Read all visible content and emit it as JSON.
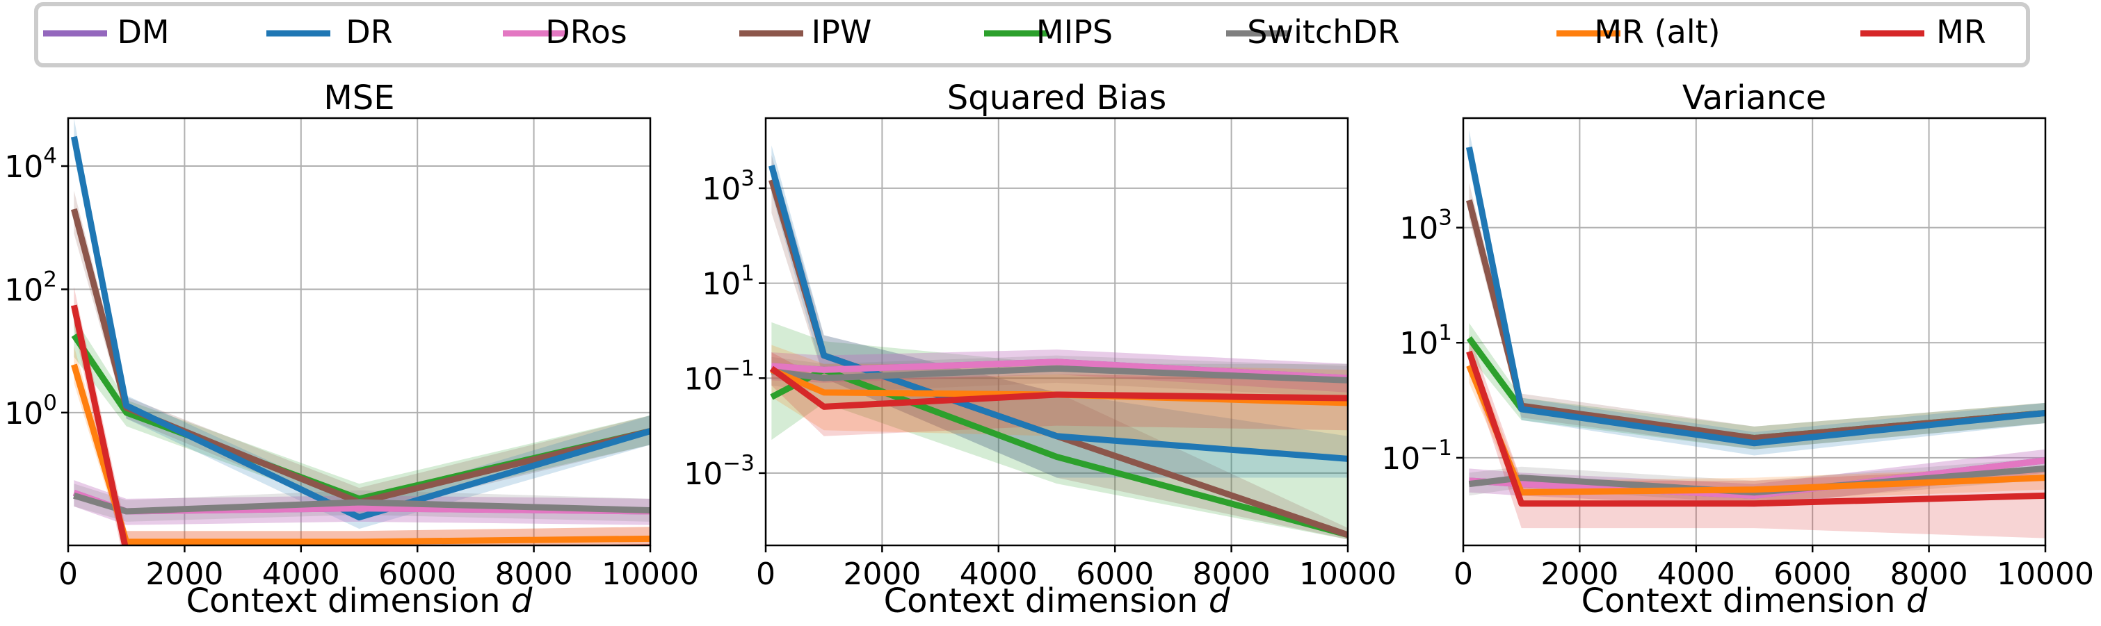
{
  "legend": {
    "placement": "top",
    "entries": [
      {
        "label": "DM",
        "color": "#9467bd"
      },
      {
        "label": "DR",
        "color": "#1f77b4"
      },
      {
        "label": "DRos",
        "color": "#e377c2"
      },
      {
        "label": "IPW",
        "color": "#8c564b"
      },
      {
        "label": "MIPS",
        "color": "#2ca02c"
      },
      {
        "label": "SwitchDR",
        "color": "#7f7f7f"
      },
      {
        "label": "MR (alt)",
        "color": "#ff7f0e"
      },
      {
        "label": "MR",
        "color": "#d62728"
      }
    ]
  },
  "chart_data": [
    {
      "type": "line",
      "title": "MSE",
      "xlabel": "Context dimension d",
      "ylabel": "",
      "x": [
        100,
        1000,
        5000,
        10000
      ],
      "xlim": [
        0,
        10000
      ],
      "xticks": [
        "0",
        "2000",
        "4000",
        "6000",
        "8000",
        "10000"
      ],
      "yscale": "log",
      "ylim": [
        0.007,
        60000
      ],
      "yticks": [
        {
          "value": 1,
          "base": "10",
          "exp": "0"
        },
        {
          "value": 100,
          "base": "10",
          "exp": "2"
        },
        {
          "value": 10000,
          "base": "10",
          "exp": "4"
        }
      ],
      "grid": true,
      "series": [
        {
          "name": "DM",
          "color": "#9467bd",
          "values": [
            0.05,
            0.025,
            0.028,
            0.025
          ],
          "band": [
            [
              0.03,
              0.08
            ],
            [
              0.015,
              0.04
            ],
            [
              0.017,
              0.045
            ],
            [
              0.015,
              0.04
            ]
          ]
        },
        {
          "name": "DRos",
          "color": "#e377c2",
          "values": [
            0.05,
            0.025,
            0.028,
            0.025
          ],
          "band": [
            [
              0.03,
              0.08
            ],
            [
              0.015,
              0.04
            ],
            [
              0.017,
              0.045
            ],
            [
              0.015,
              0.04
            ]
          ]
        },
        {
          "name": "IPW",
          "color": "#8c564b",
          "values": [
            2000,
            1.2,
            0.035,
            0.5
          ],
          "band": [
            [
              800,
              4000
            ],
            [
              0.8,
              1.8
            ],
            [
              0.022,
              0.06
            ],
            [
              0.3,
              0.9
            ]
          ]
        },
        {
          "name": "DR",
          "color": "#1f77b4",
          "values": [
            30000,
            1.3,
            0.02,
            0.5
          ],
          "band": [
            [
              15000,
              60000
            ],
            [
              0.8,
              1.9
            ],
            [
              0.013,
              0.035
            ],
            [
              0.3,
              0.9
            ]
          ]
        },
        {
          "name": "MIPS",
          "color": "#2ca02c",
          "values": [
            18,
            1.0,
            0.04,
            0.5
          ],
          "band": [
            [
              8,
              35
            ],
            [
              0.6,
              1.6
            ],
            [
              0.025,
              0.07
            ],
            [
              0.3,
              0.9
            ]
          ]
        },
        {
          "name": "SwitchDR",
          "color": "#7f7f7f",
          "values": [
            0.045,
            0.025,
            0.035,
            0.026
          ],
          "band": [
            [
              0.03,
              0.07
            ],
            [
              0.017,
              0.038
            ],
            [
              0.022,
              0.055
            ],
            [
              0.017,
              0.04
            ]
          ]
        },
        {
          "name": "MR (alt)",
          "color": "#ff7f0e",
          "values": [
            6,
            0.008,
            0.008,
            0.009
          ],
          "band": [
            [
              3,
              12
            ],
            [
              0.005,
              0.012
            ],
            [
              0.005,
              0.012
            ],
            [
              0.006,
              0.014
            ]
          ]
        },
        {
          "name": "MR",
          "color": "#d62728",
          "values": [
            55,
            0.0055,
            0.0058,
            0.0065
          ],
          "band": [
            [
              25,
              110
            ],
            [
              0.0025,
              0.012
            ],
            [
              0.0025,
              0.012
            ],
            [
              0.003,
              0.014
            ]
          ]
        }
      ]
    },
    {
      "type": "line",
      "title": "Squared Bias",
      "xlabel": "Context dimension d",
      "ylabel": "",
      "x": [
        100,
        1000,
        5000,
        10000
      ],
      "xlim": [
        0,
        10000
      ],
      "xticks": [
        "0",
        "2000",
        "4000",
        "6000",
        "8000",
        "10000"
      ],
      "yscale": "log",
      "ylim": [
        3e-05,
        30000
      ],
      "yticks": [
        {
          "value": 0.001,
          "base": "10",
          "exp": "−3"
        },
        {
          "value": 0.1,
          "base": "10",
          "exp": "−1"
        },
        {
          "value": 10,
          "base": "10",
          "exp": "1"
        },
        {
          "value": 1000,
          "base": "10",
          "exp": "3"
        }
      ],
      "grid": true,
      "series": [
        {
          "name": "DM",
          "color": "#9467bd",
          "values": [
            0.18,
            0.15,
            0.22,
            0.1
          ],
          "band": [
            [
              0.09,
              0.35
            ],
            [
              0.08,
              0.3
            ],
            [
              0.12,
              0.4
            ],
            [
              0.05,
              0.2
            ]
          ]
        },
        {
          "name": "DRos",
          "color": "#e377c2",
          "values": [
            0.18,
            0.15,
            0.22,
            0.1
          ],
          "band": [
            [
              0.09,
              0.35
            ],
            [
              0.08,
              0.3
            ],
            [
              0.12,
              0.4
            ],
            [
              0.05,
              0.2
            ]
          ]
        },
        {
          "name": "IPW",
          "color": "#8c564b",
          "values": [
            1500,
            0.3,
            0.006,
            5e-05
          ],
          "band": [
            [
              300,
              5000
            ],
            [
              0.1,
              0.8
            ],
            [
              0.0008,
              0.05
            ],
            [
              4e-05,
              7e-05
            ]
          ]
        },
        {
          "name": "DR",
          "color": "#1f77b4",
          "values": [
            3000,
            0.3,
            0.006,
            0.002
          ],
          "band": [
            [
              800,
              8000
            ],
            [
              0.1,
              0.8
            ],
            [
              0.0008,
              0.05
            ],
            [
              0.0008,
              0.006
            ]
          ]
        },
        {
          "name": "MIPS",
          "color": "#2ca02c",
          "values": [
            0.04,
            0.15,
            0.0022,
            5e-05
          ],
          "band": [
            [
              0.005,
              1.5
            ],
            [
              0.03,
              0.6
            ],
            [
              0.0006,
              0.2
            ],
            [
              4e-05,
              0.2
            ]
          ]
        },
        {
          "name": "SwitchDR",
          "color": "#7f7f7f",
          "values": [
            0.14,
            0.1,
            0.16,
            0.09
          ],
          "band": [
            [
              0.07,
              0.28
            ],
            [
              0.05,
              0.2
            ],
            [
              0.08,
              0.3
            ],
            [
              0.04,
              0.18
            ]
          ]
        },
        {
          "name": "MR (alt)",
          "color": "#ff7f0e",
          "values": [
            0.15,
            0.05,
            0.045,
            0.03
          ],
          "band": [
            [
              0.04,
              0.5
            ],
            [
              0.008,
              0.2
            ],
            [
              0.006,
              0.2
            ],
            [
              0.002,
              0.15
            ]
          ]
        },
        {
          "name": "MR",
          "color": "#d62728",
          "values": [
            0.16,
            0.025,
            0.045,
            0.038
          ],
          "band": [
            [
              0.07,
              0.35
            ],
            [
              0.006,
              0.09
            ],
            [
              0.01,
              0.12
            ],
            [
              0.008,
              0.1
            ]
          ]
        }
      ]
    },
    {
      "type": "line",
      "title": "Variance",
      "xlabel": "Context dimension d",
      "ylabel": "",
      "x": [
        100,
        1000,
        5000,
        10000
      ],
      "xlim": [
        0,
        10000
      ],
      "xticks": [
        "0",
        "2000",
        "4000",
        "6000",
        "8000",
        "10000"
      ],
      "yscale": "log",
      "ylim": [
        0.003,
        80000
      ],
      "yticks": [
        {
          "value": 0.1,
          "base": "10",
          "exp": "−1"
        },
        {
          "value": 10,
          "base": "10",
          "exp": "1"
        },
        {
          "value": 1000,
          "base": "10",
          "exp": "3"
        }
      ],
      "grid": true,
      "series": [
        {
          "name": "DM",
          "color": "#9467bd",
          "values": [
            0.04,
            0.035,
            0.022,
            0.09
          ],
          "band": [
            [
              0.025,
              0.065
            ],
            [
              0.022,
              0.055
            ],
            [
              0.014,
              0.035
            ],
            [
              0.055,
              0.14
            ]
          ]
        },
        {
          "name": "DRos",
          "color": "#e377c2",
          "values": [
            0.04,
            0.035,
            0.022,
            0.09
          ],
          "band": [
            [
              0.025,
              0.065
            ],
            [
              0.022,
              0.055
            ],
            [
              0.014,
              0.035
            ],
            [
              0.055,
              0.14
            ]
          ]
        },
        {
          "name": "IPW",
          "color": "#8c564b",
          "values": [
            3000,
            0.8,
            0.22,
            0.6
          ],
          "band": [
            [
              1500,
              6000
            ],
            [
              0.5,
              1.3
            ],
            [
              0.14,
              0.35
            ],
            [
              0.4,
              0.9
            ]
          ]
        },
        {
          "name": "DR",
          "color": "#1f77b4",
          "values": [
            25000,
            0.7,
            0.18,
            0.6
          ],
          "band": [
            [
              12000,
              50000
            ],
            [
              0.45,
              1.1
            ],
            [
              0.11,
              0.28
            ],
            [
              0.4,
              0.9
            ]
          ]
        },
        {
          "name": "MIPS",
          "color": "#2ca02c",
          "values": [
            12,
            0.7,
            0.22,
            0.6
          ],
          "band": [
            [
              6,
              22
            ],
            [
              0.45,
              1.1
            ],
            [
              0.14,
              0.35
            ],
            [
              0.4,
              0.9
            ]
          ]
        },
        {
          "name": "SwitchDR",
          "color": "#7f7f7f",
          "values": [
            0.035,
            0.045,
            0.025,
            0.065
          ],
          "band": [
            [
              0.022,
              0.055
            ],
            [
              0.03,
              0.07
            ],
            [
              0.016,
              0.04
            ],
            [
              0.042,
              0.1
            ]
          ]
        },
        {
          "name": "MR (alt)",
          "color": "#ff7f0e",
          "values": [
            4,
            0.025,
            0.028,
            0.045
          ],
          "band": [
            [
              2,
              8
            ],
            [
              0.016,
              0.04
            ],
            [
              0.018,
              0.045
            ],
            [
              0.028,
              0.07
            ]
          ]
        },
        {
          "name": "MR",
          "color": "#d62728",
          "values": [
            7,
            0.016,
            0.016,
            0.022
          ],
          "band": [
            [
              3.5,
              14
            ],
            [
              0.006,
              0.04
            ],
            [
              0.006,
              0.04
            ],
            [
              0.004,
              0.07
            ]
          ]
        }
      ]
    }
  ]
}
